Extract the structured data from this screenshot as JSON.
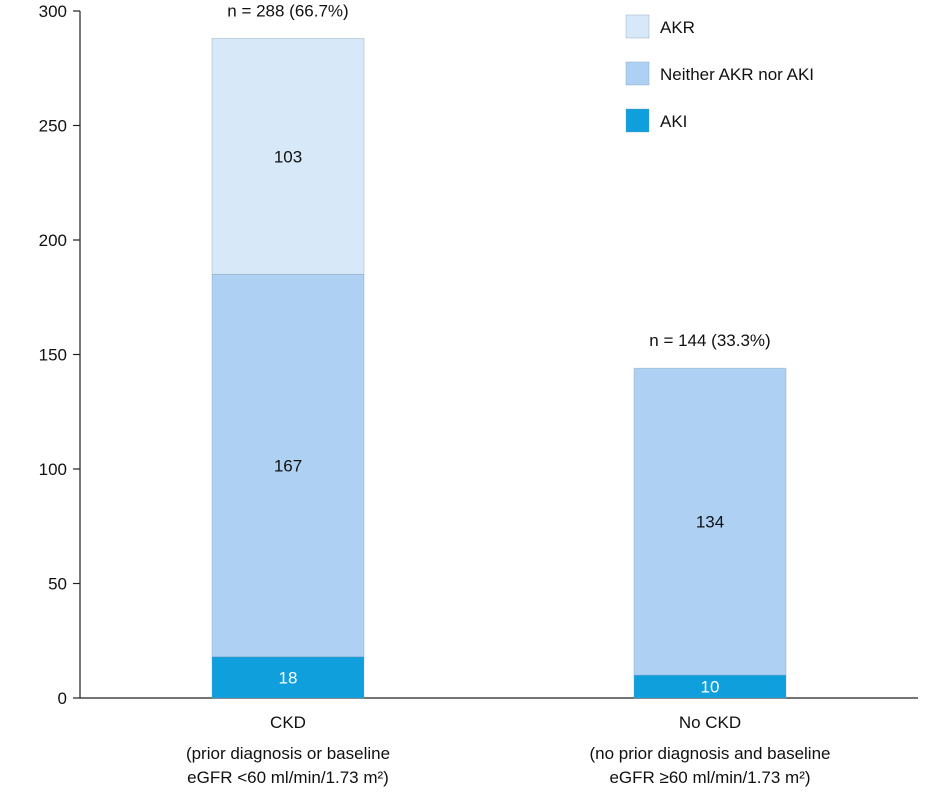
{
  "chart_data": {
    "type": "bar",
    "stacked": true,
    "ylim": [
      0,
      300
    ],
    "yticks": [
      0,
      50,
      100,
      150,
      200,
      250,
      300
    ],
    "grid": false,
    "legend_position": "top-right",
    "categories": [
      {
        "label": "CKD",
        "sublabel_lines": [
          "(prior diagnosis or baseline",
          "eGFR <60 ml/min/1.73 m²)"
        ],
        "total_label": "n = 288 (66.7%)"
      },
      {
        "label": "No CKD",
        "sublabel_lines": [
          "(no prior diagnosis and baseline",
          "eGFR ≥60 ml/min/1.73 m²)"
        ],
        "total_label": "n = 144 (33.3%)"
      }
    ],
    "series": [
      {
        "name": "AKI",
        "values": [
          18,
          10
        ],
        "color": "#0e9fdc",
        "label_color": "#ffffff"
      },
      {
        "name": "Neither AKR nor AKI",
        "values": [
          167,
          134
        ],
        "color": "#aed1f3",
        "label_color": "#111111"
      },
      {
        "name": "AKR",
        "values": [
          103,
          0
        ],
        "color": "#d7e8f8",
        "label_color": "#111111"
      }
    ],
    "legend_order": [
      "AKR",
      "Neither AKR nor AKI",
      "AKI"
    ]
  }
}
